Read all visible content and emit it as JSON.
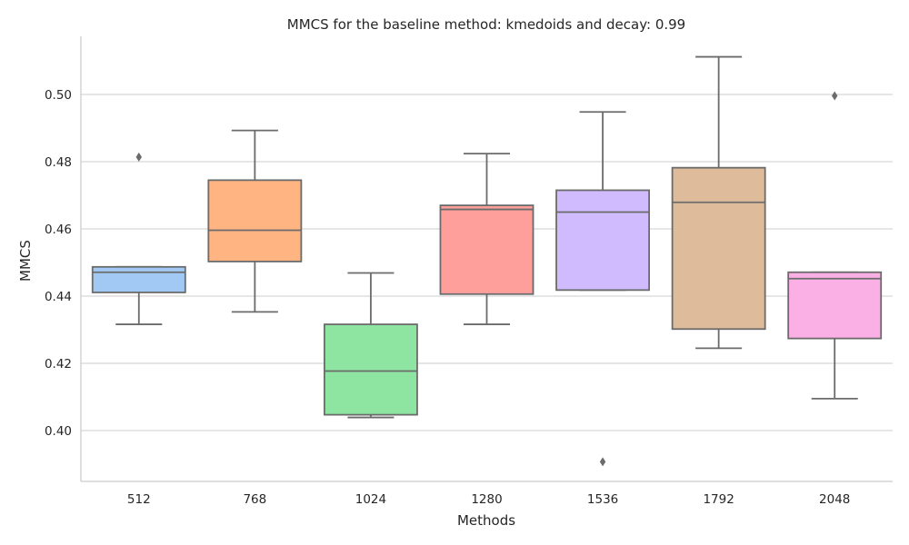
{
  "chart_data": {
    "type": "box",
    "title": "MMCS for the baseline method: kmedoids and decay: 0.99",
    "xlabel": "Methods",
    "ylabel": "MMCS",
    "ylim": [
      0.385,
      0.517
    ],
    "yticks": [
      0.4,
      0.42,
      0.44,
      0.46,
      0.48,
      0.5
    ],
    "grid": "horizontal",
    "categories": [
      "512",
      "768",
      "1024",
      "1280",
      "1536",
      "1792",
      "2048"
    ],
    "boxes": [
      {
        "category": "512",
        "color": "#a1c9f4",
        "whisker_low": 0.4316,
        "q1": 0.4411,
        "median": 0.4471,
        "q3": 0.4487,
        "whisker_high": 0.4487,
        "outliers": [
          0.4814
        ]
      },
      {
        "category": "768",
        "color": "#ffb482",
        "whisker_low": 0.4353,
        "q1": 0.4503,
        "median": 0.4596,
        "q3": 0.4745,
        "whisker_high": 0.4893,
        "outliers": []
      },
      {
        "category": "1024",
        "color": "#8de5a1",
        "whisker_low": 0.4039,
        "q1": 0.4047,
        "median": 0.4177,
        "q3": 0.4316,
        "whisker_high": 0.4469,
        "outliers": []
      },
      {
        "category": "1280",
        "color": "#ff9f9b",
        "whisker_low": 0.4316,
        "q1": 0.4406,
        "median": 0.4658,
        "q3": 0.467,
        "whisker_high": 0.4824,
        "outliers": []
      },
      {
        "category": "1536",
        "color": "#d0bbff",
        "whisker_low": 0.4418,
        "q1": 0.4418,
        "median": 0.465,
        "q3": 0.4715,
        "whisker_high": 0.4948,
        "outliers": [
          0.3907
        ]
      },
      {
        "category": "1792",
        "color": "#debb9b",
        "whisker_low": 0.4245,
        "q1": 0.4302,
        "median": 0.4679,
        "q3": 0.4782,
        "whisker_high": 0.5112,
        "outliers": []
      },
      {
        "category": "2048",
        "color": "#fab0e4",
        "whisker_low": 0.4095,
        "q1": 0.4274,
        "median": 0.4452,
        "q3": 0.4471,
        "whisker_high": 0.4471,
        "outliers": [
          0.4996
        ]
      }
    ]
  }
}
